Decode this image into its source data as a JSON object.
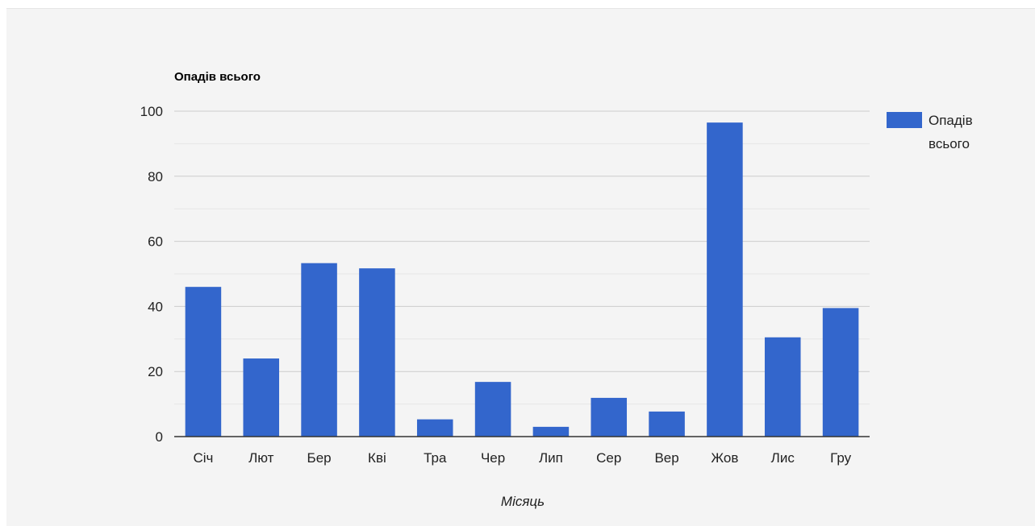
{
  "chart_data": {
    "type": "bar",
    "title": "Опадів всього",
    "xlabel": "Місяць",
    "ylabel": "",
    "categories": [
      "Січ",
      "Лют",
      "Бер",
      "Кві",
      "Тра",
      "Чер",
      "Лип",
      "Сер",
      "Вер",
      "Жов",
      "Лис",
      "Гру"
    ],
    "series": [
      {
        "name": "Опадів всього",
        "color": "#3366cc",
        "values": [
          46,
          24,
          53.3,
          51.7,
          5.3,
          16.8,
          3,
          11.9,
          7.7,
          96.5,
          30.5,
          39.5
        ]
      }
    ],
    "ylim": [
      0,
      100
    ],
    "yticks": [
      0,
      20,
      40,
      60,
      80,
      100
    ],
    "minor_gridlines": true,
    "legend": {
      "position": "right",
      "lines": [
        "Опадів",
        "всього"
      ]
    }
  }
}
